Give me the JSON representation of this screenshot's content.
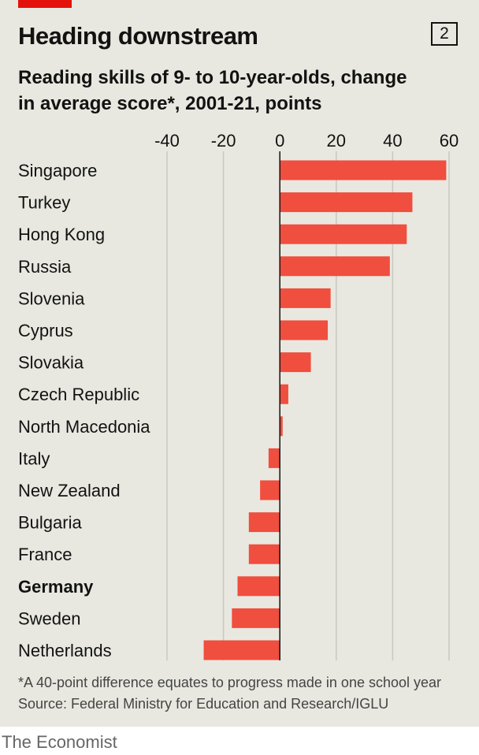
{
  "header": {
    "title": "Heading downstream",
    "subtitle_line1": "Reading skills of 9- to 10-year-olds, change",
    "subtitle_line2": "in average score*, 2001-21, points",
    "chart_number": "2"
  },
  "footer": {
    "footnote": "*A 40-point difference equates to progress made in one school year",
    "source": "Source: Federal Ministry for Education and Research/IGLU",
    "brand": "The Economist"
  },
  "colors": {
    "accent": "#e3120b",
    "bar": "#f04e3e",
    "background": "#e8e8e0",
    "grid": "#c8c8c0"
  },
  "chart_data": {
    "type": "bar",
    "orientation": "horizontal",
    "title": "Heading downstream",
    "subtitle": "Reading skills of 9- to 10-year-olds, change in average score*, 2001-21, points",
    "categories": [
      "Singapore",
      "Turkey",
      "Hong Kong",
      "Russia",
      "Slovenia",
      "Cyprus",
      "Slovakia",
      "Czech Republic",
      "North Macedonia",
      "Italy",
      "New Zealand",
      "Bulgaria",
      "France",
      "Germany",
      "Sweden",
      "Netherlands"
    ],
    "values": [
      59,
      47,
      45,
      39,
      18,
      17,
      11,
      3,
      1,
      -4,
      -7,
      -11,
      -11,
      -15,
      -17,
      -27
    ],
    "highlighted_category": "Germany",
    "xlim": [
      -40,
      60
    ],
    "xticks": [
      -40,
      -20,
      0,
      20,
      40,
      60
    ],
    "xtick_labels": [
      "-40",
      "-20",
      "0",
      "20",
      "40",
      "60"
    ],
    "x_axis_position": "top",
    "grid": true
  }
}
